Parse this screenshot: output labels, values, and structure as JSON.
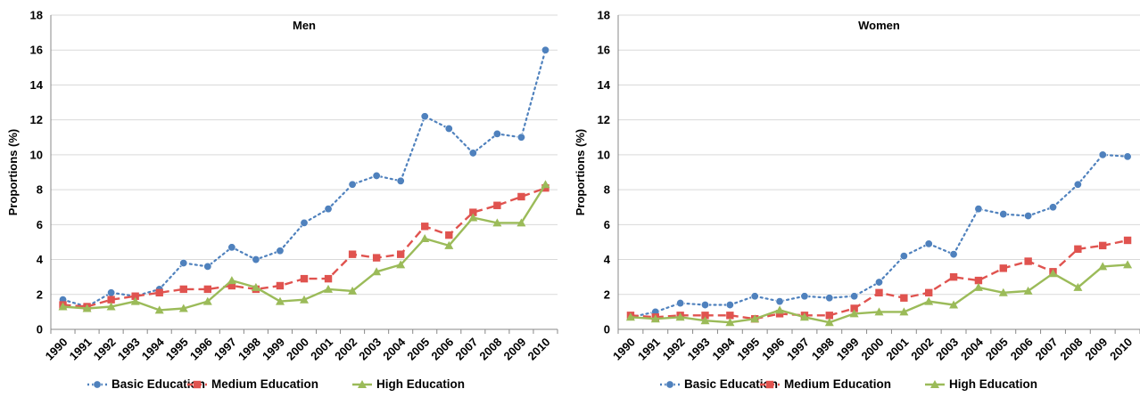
{
  "chart_data": [
    {
      "type": "line",
      "title": "Men",
      "xlabel": "",
      "ylabel": "Proportions (%)",
      "ylim": [
        0,
        18
      ],
      "yticks": [
        0,
        2,
        4,
        6,
        8,
        10,
        12,
        14,
        16,
        18
      ],
      "grid": true,
      "legend": "bottom",
      "categories": [
        "1990",
        "1991",
        "1992",
        "1993",
        "1994",
        "1995",
        "1996",
        "1997",
        "1998",
        "1999",
        "2000",
        "2001",
        "2002",
        "2003",
        "2004",
        "2005",
        "2006",
        "2007",
        "2008",
        "2009",
        "2010"
      ],
      "series": [
        {
          "name": "Basic Education",
          "color": "#4f81bd",
          "style": "dotted",
          "marker": "circle",
          "values": [
            1.7,
            1.3,
            2.1,
            1.9,
            2.3,
            3.8,
            3.6,
            4.7,
            4.0,
            4.5,
            6.1,
            6.9,
            8.3,
            8.8,
            8.5,
            12.2,
            11.5,
            10.1,
            11.2,
            11.0,
            16.0
          ]
        },
        {
          "name": "Medium Education",
          "color": "#e0534f",
          "style": "dashed",
          "marker": "square",
          "values": [
            1.4,
            1.3,
            1.7,
            1.9,
            2.1,
            2.3,
            2.3,
            2.5,
            2.3,
            2.5,
            2.9,
            2.9,
            4.3,
            4.1,
            4.3,
            5.9,
            5.4,
            6.7,
            7.1,
            7.6,
            8.1
          ]
        },
        {
          "name": "High Education",
          "color": "#9bbb59",
          "style": "solid",
          "marker": "triangle",
          "values": [
            1.3,
            1.2,
            1.3,
            1.6,
            1.1,
            1.2,
            1.6,
            2.8,
            2.4,
            1.6,
            1.7,
            2.3,
            2.2,
            3.3,
            3.7,
            5.2,
            4.8,
            6.4,
            6.1,
            6.1,
            8.3
          ]
        }
      ]
    },
    {
      "type": "line",
      "title": "Women",
      "xlabel": "",
      "ylabel": "Proportions (%)",
      "ylim": [
        0,
        18
      ],
      "yticks": [
        0,
        2,
        4,
        6,
        8,
        10,
        12,
        14,
        16,
        18
      ],
      "grid": true,
      "legend": "bottom",
      "categories": [
        "1990",
        "1991",
        "1992",
        "1993",
        "1994",
        "1995",
        "1996",
        "1997",
        "1998",
        "1999",
        "2000",
        "2001",
        "2002",
        "2003",
        "2004",
        "2005",
        "2006",
        "2007",
        "2008",
        "2009",
        "2010"
      ],
      "series": [
        {
          "name": "Basic Education",
          "color": "#4f81bd",
          "style": "dotted",
          "marker": "circle",
          "values": [
            0.7,
            1.0,
            1.5,
            1.4,
            1.4,
            1.9,
            1.6,
            1.9,
            1.8,
            1.9,
            2.7,
            4.2,
            4.9,
            4.3,
            6.9,
            6.6,
            6.5,
            7.0,
            8.3,
            10.0,
            9.9
          ]
        },
        {
          "name": "Medium Education",
          "color": "#e0534f",
          "style": "dashed",
          "marker": "square",
          "values": [
            0.8,
            0.7,
            0.8,
            0.8,
            0.8,
            0.6,
            0.9,
            0.8,
            0.8,
            1.2,
            2.1,
            1.8,
            2.1,
            3.0,
            2.8,
            3.5,
            3.9,
            3.3,
            4.6,
            4.8,
            5.1
          ]
        },
        {
          "name": "High Education",
          "color": "#9bbb59",
          "style": "solid",
          "marker": "triangle",
          "values": [
            0.7,
            0.6,
            0.7,
            0.5,
            0.4,
            0.6,
            1.1,
            0.7,
            0.4,
            0.9,
            1.0,
            1.0,
            1.6,
            1.4,
            2.4,
            2.1,
            2.2,
            3.2,
            2.4,
            3.6,
            3.7
          ]
        }
      ]
    }
  ]
}
